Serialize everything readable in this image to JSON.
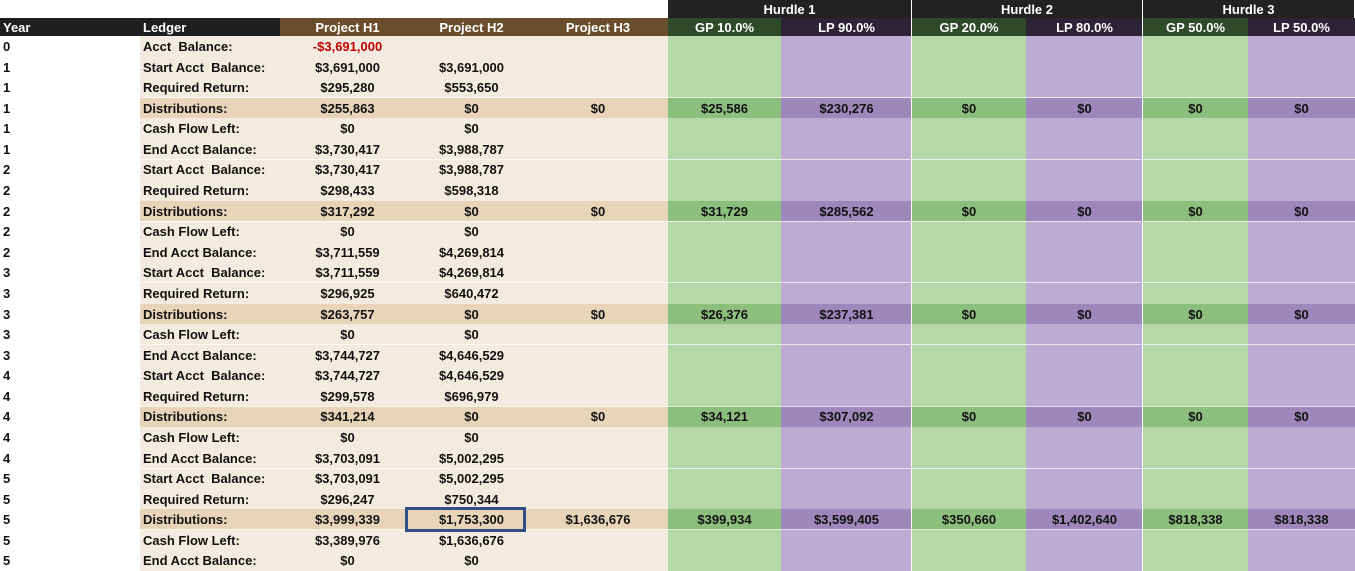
{
  "header": {
    "columns": [
      "Year",
      "Ledger",
      "Project H1",
      "Project H2",
      "Project H3"
    ],
    "hurdles": [
      {
        "label": "Hurdle 1",
        "gp": "GP 10.0%",
        "lp": "LP 90.0%"
      },
      {
        "label": "Hurdle 2",
        "gp": "GP 20.0%",
        "lp": "LP 80.0%"
      },
      {
        "label": "Hurdle 3",
        "gp": "GP 50.0%",
        "lp": "LP 50.0%"
      }
    ]
  },
  "table": {
    "rows": [
      {
        "year": "0",
        "ledger": "Acct  Balance:",
        "h1": "-$3,691,000"
      },
      {
        "year": "1",
        "ledger": "Start Acct  Balance:",
        "h1": "$3,691,000",
        "h2": "$3,691,000"
      },
      {
        "year": "1",
        "ledger": "Required Return:",
        "h1": "$295,280",
        "h2": "$553,650"
      },
      {
        "year": "1",
        "ledger": "Distributions:",
        "h1": "$255,863",
        "h2": "$0",
        "h3": "$0",
        "gp1": "$25,586",
        "lp1": "$230,276",
        "gp2": "$0",
        "lp2": "$0",
        "gp3": "$0",
        "lp3": "$0"
      },
      {
        "year": "1",
        "ledger": "Cash Flow Left:",
        "h1": "$0",
        "h2": "$0"
      },
      {
        "year": "1",
        "ledger": "End Acct Balance:",
        "h1": "$3,730,417",
        "h2": "$3,988,787"
      },
      {
        "year": "2",
        "ledger": "Start Acct  Balance:",
        "h1": "$3,730,417",
        "h2": "$3,988,787"
      },
      {
        "year": "2",
        "ledger": "Required Return:",
        "h1": "$298,433",
        "h2": "$598,318"
      },
      {
        "year": "2",
        "ledger": "Distributions:",
        "h1": "$317,292",
        "h2": "$0",
        "h3": "$0",
        "gp1": "$31,729",
        "lp1": "$285,562",
        "gp2": "$0",
        "lp2": "$0",
        "gp3": "$0",
        "lp3": "$0"
      },
      {
        "year": "2",
        "ledger": "Cash Flow Left:",
        "h1": "$0",
        "h2": "$0"
      },
      {
        "year": "2",
        "ledger": "End Acct Balance:",
        "h1": "$3,711,559",
        "h2": "$4,269,814"
      },
      {
        "year": "3",
        "ledger": "Start Acct  Balance:",
        "h1": "$3,711,559",
        "h2": "$4,269,814"
      },
      {
        "year": "3",
        "ledger": "Required Return:",
        "h1": "$296,925",
        "h2": "$640,472"
      },
      {
        "year": "3",
        "ledger": "Distributions:",
        "h1": "$263,757",
        "h2": "$0",
        "h3": "$0",
        "gp1": "$26,376",
        "lp1": "$237,381",
        "gp2": "$0",
        "lp2": "$0",
        "gp3": "$0",
        "lp3": "$0"
      },
      {
        "year": "3",
        "ledger": "Cash Flow Left:",
        "h1": "$0",
        "h2": "$0"
      },
      {
        "year": "3",
        "ledger": "End Acct Balance:",
        "h1": "$3,744,727",
        "h2": "$4,646,529"
      },
      {
        "year": "4",
        "ledger": "Start Acct  Balance:",
        "h1": "$3,744,727",
        "h2": "$4,646,529"
      },
      {
        "year": "4",
        "ledger": "Required Return:",
        "h1": "$299,578",
        "h2": "$696,979"
      },
      {
        "year": "4",
        "ledger": "Distributions:",
        "h1": "$341,214",
        "h2": "$0",
        "h3": "$0",
        "gp1": "$34,121",
        "lp1": "$307,092",
        "gp2": "$0",
        "lp2": "$0",
        "gp3": "$0",
        "lp3": "$0"
      },
      {
        "year": "4",
        "ledger": "Cash Flow Left:",
        "h1": "$0",
        "h2": "$0"
      },
      {
        "year": "4",
        "ledger": "End Acct Balance:",
        "h1": "$3,703,091",
        "h2": "$5,002,295"
      },
      {
        "year": "5",
        "ledger": "Start Acct  Balance:",
        "h1": "$3,703,091",
        "h2": "$5,002,295"
      },
      {
        "year": "5",
        "ledger": "Required Return:",
        "h1": "$296,247",
        "h2": "$750,344"
      },
      {
        "year": "5",
        "ledger": "Distributions:",
        "h1": "$3,999,339",
        "h2": "$1,753,300",
        "h3": "$1,636,676",
        "gp1": "$399,934",
        "lp1": "$3,599,405",
        "gp2": "$350,660",
        "lp2": "$1,402,640",
        "gp3": "$818,338",
        "lp3": "$818,338"
      },
      {
        "year": "5",
        "ledger": "Cash Flow Left:",
        "h1": "$3,389,976",
        "h2": "$1,636,676"
      },
      {
        "year": "5",
        "ledger": "End Acct Balance:",
        "h1": "$0",
        "h2": "$0"
      }
    ]
  }
}
